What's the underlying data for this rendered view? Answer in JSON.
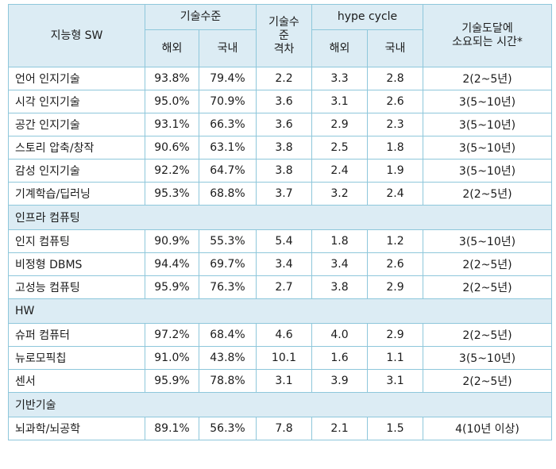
{
  "headers": {
    "category": "지능형 SW",
    "tech_level": "기술수준",
    "overseas": "해외",
    "domestic": "국내",
    "gap": "기술수준격차",
    "gap_lines": [
      "기술수",
      "준",
      "격차"
    ],
    "hype_cycle": "hype cycle",
    "hype_overseas": "해외",
    "hype_domestic": "국내",
    "time_lines": [
      "기술도달에",
      "소요되는 시간*"
    ]
  },
  "groups": [
    {
      "section": null,
      "rows": [
        {
          "name": "언어 인지기술",
          "overseas": "93.8%",
          "domestic": "79.4%",
          "gap": "2.2",
          "hype_overseas": "3.3",
          "hype_domestic": "2.8",
          "time": "2(2~5년)"
        },
        {
          "name": "시각 인지기술",
          "overseas": "95.0%",
          "domestic": "70.9%",
          "gap": "3.6",
          "hype_overseas": "3.1",
          "hype_domestic": "2.6",
          "time": "3(5~10년)"
        },
        {
          "name": "공간 인지기술",
          "overseas": "93.1%",
          "domestic": "66.3%",
          "gap": "3.6",
          "hype_overseas": "2.9",
          "hype_domestic": "2.3",
          "time": "3(5~10년)"
        },
        {
          "name": "스토리 압축/창작",
          "overseas": "90.6%",
          "domestic": "63.1%",
          "gap": "3.8",
          "hype_overseas": "2.5",
          "hype_domestic": "1.8",
          "time": "3(5~10년)"
        },
        {
          "name": "감성 인지기술",
          "overseas": "92.2%",
          "domestic": "64.7%",
          "gap": "3.8",
          "hype_overseas": "2.4",
          "hype_domestic": "1.9",
          "time": "3(5~10년)"
        },
        {
          "name": "기계학습/딥러닝",
          "overseas": "95.3%",
          "domestic": "68.8%",
          "gap": "3.7",
          "hype_overseas": "3.2",
          "hype_domestic": "2.4",
          "time": "2(2~5년)"
        }
      ]
    },
    {
      "section": "인프라 컴퓨팅",
      "rows": [
        {
          "name": "인지 컴퓨팅",
          "overseas": "90.9%",
          "domestic": "55.3%",
          "gap": "5.4",
          "hype_overseas": "1.8",
          "hype_domestic": "1.2",
          "time": "3(5~10년)"
        },
        {
          "name": "비정형 DBMS",
          "overseas": "94.4%",
          "domestic": "69.7%",
          "gap": "3.4",
          "hype_overseas": "3.4",
          "hype_domestic": "2.6",
          "time": "2(2~5년)"
        },
        {
          "name": "고성능 컴퓨팅",
          "overseas": "95.9%",
          "domestic": "76.3%",
          "gap": "2.7",
          "hype_overseas": "3.8",
          "hype_domestic": "2.9",
          "time": "2(2~5년)"
        }
      ]
    },
    {
      "section": "HW",
      "rows": [
        {
          "name": "슈퍼 컴퓨터",
          "overseas": "97.2%",
          "domestic": "68.4%",
          "gap": "4.6",
          "hype_overseas": "4.0",
          "hype_domestic": "2.9",
          "time": "2(2~5년)"
        },
        {
          "name": "뉴로모픽칩",
          "overseas": "91.0%",
          "domestic": "43.8%",
          "gap": "10.1",
          "hype_overseas": "1.6",
          "hype_domestic": "1.1",
          "time": "3(5~10년)"
        },
        {
          "name": "센서",
          "overseas": "95.9%",
          "domestic": "78.8%",
          "gap": "3.1",
          "hype_overseas": "3.9",
          "hype_domestic": "3.1",
          "time": "2(2~5년)"
        }
      ]
    },
    {
      "section": "기반기술",
      "rows": [
        {
          "name": "뇌과학/뇌공학",
          "overseas": "89.1%",
          "domestic": "56.3%",
          "gap": "7.8",
          "hype_overseas": "2.1",
          "hype_domestic": "1.5",
          "time": "4(10년 이상)"
        }
      ]
    }
  ]
}
